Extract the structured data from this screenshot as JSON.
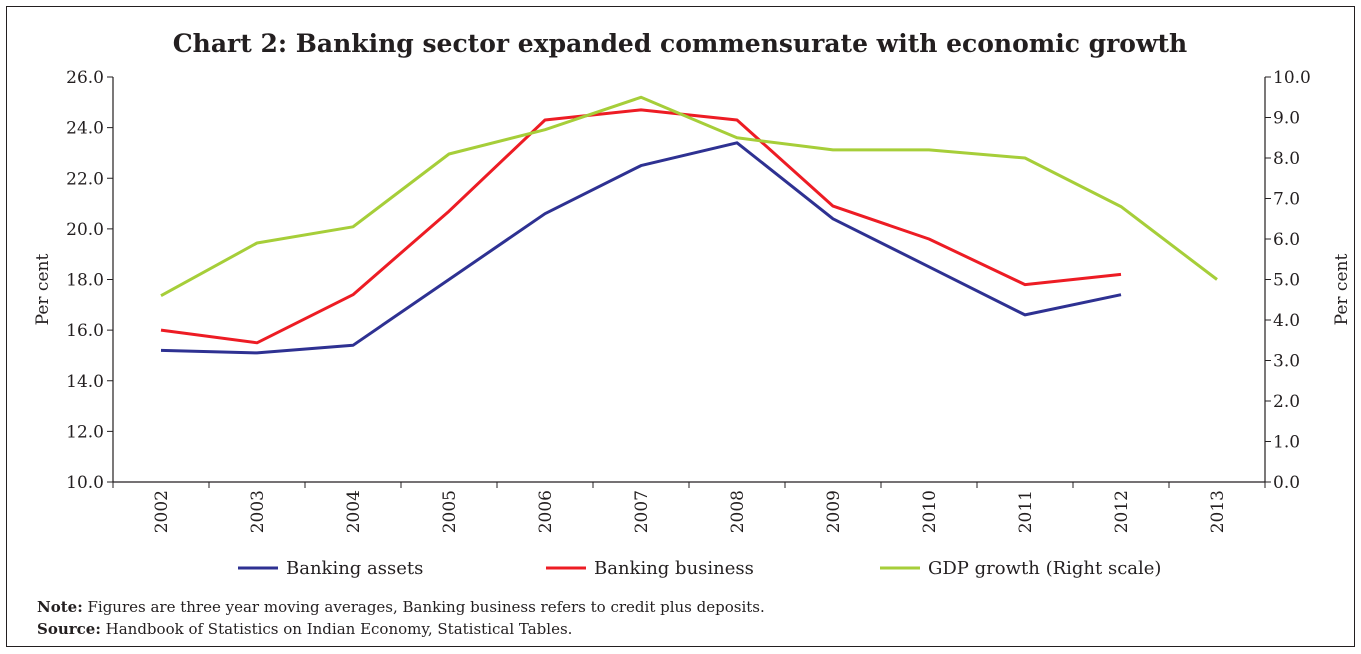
{
  "chart_data": {
    "type": "line",
    "title": "Chart 2: Banking sector expanded commensurate with economic growth",
    "categories": [
      "2002",
      "2003",
      "2004",
      "2005",
      "2006",
      "2007",
      "2008",
      "2009",
      "2010",
      "2011",
      "2012",
      "2013"
    ],
    "ylabel": "Per cent",
    "ylabel_right": "Per cent",
    "ylim": [
      10.0,
      26.0
    ],
    "ylim_right": [
      0.0,
      10.0
    ],
    "yticks": [
      "10.0",
      "12.0",
      "14.0",
      "16.0",
      "18.0",
      "20.0",
      "22.0",
      "24.0",
      "26.0"
    ],
    "yticks_right": [
      "0.0",
      "1.0",
      "2.0",
      "3.0",
      "4.0",
      "5.0",
      "6.0",
      "7.0",
      "8.0",
      "9.0",
      "10.0"
    ],
    "grid": false,
    "legend_position": "bottom",
    "series": [
      {
        "name": "Banking assets",
        "axis": "left",
        "color": "#2e3192",
        "values": [
          15.2,
          15.1,
          15.4,
          18.0,
          20.6,
          22.5,
          23.4,
          20.4,
          18.5,
          16.6,
          17.4,
          null
        ]
      },
      {
        "name": "Banking business",
        "axis": "left",
        "color": "#ed1c24",
        "values": [
          16.0,
          15.5,
          17.4,
          20.7,
          24.3,
          24.7,
          24.3,
          20.9,
          19.6,
          17.8,
          18.2,
          null
        ]
      },
      {
        "name": "GDP growth (Right scale)",
        "axis": "right",
        "color": "#a6ce39",
        "values": [
          4.6,
          5.9,
          6.3,
          8.1,
          8.7,
          9.5,
          8.5,
          8.2,
          8.2,
          8.0,
          6.8,
          5.0
        ]
      }
    ]
  },
  "notes": {
    "note_label": "Note:",
    "note_text": " Figures are three year moving averages, Banking business refers to credit plus deposits.",
    "source_label": "Source:",
    "source_text": " Handbook of Statistics on Indian Economy, Statistical Tables."
  }
}
